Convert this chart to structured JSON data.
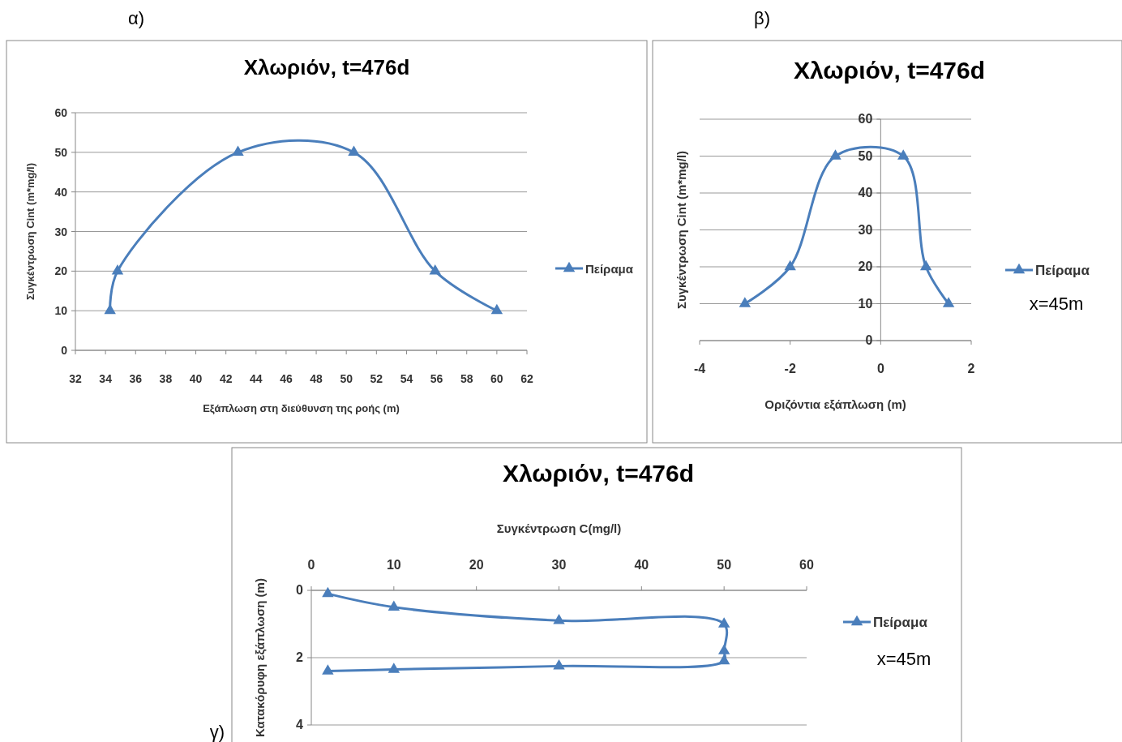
{
  "chart_data": [
    {
      "type": "line",
      "title": "Χλωριόν, t=476d",
      "xlabel": "Εξάπλωση στη διεύθυνση της ροής (m)",
      "ylabel": "Συγκέντρωση  Cint (m*mg/l)",
      "xlim": [
        32,
        62
      ],
      "xticks": [
        32,
        34,
        36,
        38,
        40,
        42,
        44,
        46,
        48,
        50,
        52,
        54,
        56,
        58,
        60,
        62
      ],
      "ylim": [
        0,
        60
      ],
      "yticks": [
        0,
        10,
        20,
        30,
        40,
        50,
        60
      ],
      "grid": "y",
      "legend": "right",
      "marker": "triangle",
      "annotations": [
        "α)"
      ],
      "series": [
        {
          "name": "Πείραμα",
          "color": "#4a7ebb",
          "x": [
            34.3,
            34.8,
            42.8,
            50.5,
            55.9,
            60
          ],
          "values": [
            10,
            20,
            50,
            50,
            20,
            10
          ]
        }
      ]
    },
    {
      "type": "line",
      "title": "Χλωριόν, t=476d",
      "xlabel": "Οριζόντια εξάπλωση (m)",
      "ylabel": "Συγκέντρωση  Cint (m*mg/l)",
      "xlim": [
        -4,
        2
      ],
      "xticks": [
        -4,
        -2,
        0,
        2
      ],
      "ylim": [
        0,
        60
      ],
      "yticks": [
        0,
        10,
        20,
        30,
        40,
        50,
        60
      ],
      "grid": "y",
      "legend": "right",
      "marker": "triangle",
      "annotations": [
        "β)",
        "x=45m"
      ],
      "series": [
        {
          "name": "Πείραμα",
          "color": "#4a7ebb",
          "x": [
            -3,
            -2,
            -1,
            0.5,
            1,
            1.5
          ],
          "values": [
            10,
            20,
            50,
            50,
            20,
            10
          ]
        }
      ]
    },
    {
      "type": "line",
      "title": "Χλωριόν, t=476d",
      "xlabel": "Συγκέντρωση C(mg/l)",
      "ylabel": "Κατακόρυφη  εξάπλωση (m)",
      "xlim": [
        0,
        60
      ],
      "xticks": [
        0,
        10,
        20,
        30,
        40,
        50,
        60
      ],
      "ylim": [
        4,
        0
      ],
      "yticks": [
        0,
        2,
        4
      ],
      "grid": "y",
      "legend": "right",
      "marker": "triangle",
      "annotations": [
        "γ)",
        "x=45m"
      ],
      "series": [
        {
          "name": "Πείραμα",
          "color": "#4a7ebb",
          "x": [
            2,
            10,
            30,
            50,
            50,
            50,
            30,
            10,
            2
          ],
          "values": [
            0.1,
            0.5,
            0.9,
            1.0,
            1.8,
            2.1,
            2.25,
            2.35,
            2.4
          ]
        }
      ]
    }
  ]
}
